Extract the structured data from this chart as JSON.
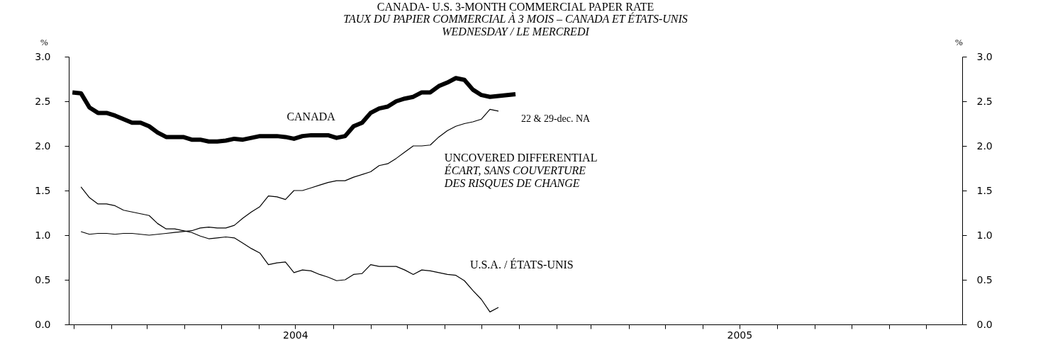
{
  "chart_data": {
    "type": "line",
    "title": "CANADA- U.S. 3-MONTH COMMERCIAL PAPER RATE",
    "subtitle": "TAUX DU PAPIER COMMERCIAL À 3 MOIS – CANADA ET ÉTATS-UNIS\nWEDNESDAY / LE MERCREDI",
    "ylabel": "%",
    "y2label": "%",
    "xlim": [
      "2003-12-28",
      "2005-12-31"
    ],
    "xticks": [
      {
        "value": "2004-01-01",
        "label": null
      },
      {
        "value": "2004-02-01",
        "label": null
      },
      {
        "value": "2004-03-01",
        "label": null
      },
      {
        "value": "2004-04-01",
        "label": null
      },
      {
        "value": "2004-05-01",
        "label": null
      },
      {
        "value": "2004-06-01",
        "label": null
      },
      {
        "value": "2004-07-01",
        "label": "2004"
      },
      {
        "value": "2004-08-01",
        "label": null
      },
      {
        "value": "2004-09-01",
        "label": null
      },
      {
        "value": "2004-10-01",
        "label": null
      },
      {
        "value": "2004-11-01",
        "label": null
      },
      {
        "value": "2004-12-01",
        "label": null
      },
      {
        "value": "2005-01-01",
        "label": null
      },
      {
        "value": "2005-02-01",
        "label": null
      },
      {
        "value": "2005-03-01",
        "label": null
      },
      {
        "value": "2005-04-01",
        "label": null
      },
      {
        "value": "2005-05-01",
        "label": null
      },
      {
        "value": "2005-06-01",
        "label": null
      },
      {
        "value": "2005-07-01",
        "label": "2005"
      },
      {
        "value": "2005-08-01",
        "label": null
      },
      {
        "value": "2005-09-01",
        "label": null
      },
      {
        "value": "2005-10-01",
        "label": null
      },
      {
        "value": "2005-11-01",
        "label": null
      },
      {
        "value": "2005-12-01",
        "label": null
      }
    ],
    "ylim": [
      0,
      3
    ],
    "yticks": [
      {
        "value": 0,
        "label": "0.0"
      },
      {
        "value": 0.5,
        "label": "0.5"
      },
      {
        "value": 1,
        "label": "1.0"
      },
      {
        "value": 1.5,
        "label": "1.5"
      },
      {
        "value": 2,
        "label": "2.0"
      },
      {
        "value": 2.5,
        "label": "2.5"
      },
      {
        "value": 3,
        "label": "3.0"
      }
    ],
    "y2lim": [
      0,
      3
    ],
    "y2ticks": [
      {
        "value": 0,
        "label": "0.0"
      },
      {
        "value": 0.5,
        "label": "0.5"
      },
      {
        "value": 1,
        "label": "1.0"
      },
      {
        "value": 1.5,
        "label": "1.5"
      },
      {
        "value": 2,
        "label": "2.0"
      },
      {
        "value": 2.5,
        "label": "2.5"
      },
      {
        "value": 3,
        "label": "3.0"
      }
    ],
    "series": [
      {
        "name": "CANADA",
        "color": "#000000",
        "x": [
          "2003-12-31",
          "2004-01-07",
          "2004-01-14",
          "2004-01-21",
          "2004-01-28",
          "2004-02-04",
          "2004-02-11",
          "2004-02-18",
          "2004-02-25",
          "2004-03-03",
          "2004-03-10",
          "2004-03-17",
          "2004-03-24",
          "2004-03-31",
          "2004-04-07",
          "2004-04-14",
          "2004-04-21",
          "2004-04-28",
          "2004-05-05",
          "2004-05-12",
          "2004-05-19",
          "2004-05-26",
          "2004-06-02",
          "2004-06-09",
          "2004-06-16",
          "2004-06-23",
          "2004-06-30",
          "2004-07-07",
          "2004-07-14",
          "2004-07-21",
          "2004-07-28",
          "2004-08-04",
          "2004-08-11",
          "2004-08-18",
          "2004-08-25",
          "2004-09-01",
          "2004-09-08",
          "2004-09-15",
          "2004-09-22",
          "2004-09-29",
          "2004-10-06",
          "2004-10-13",
          "2004-10-20",
          "2004-10-27",
          "2004-11-03",
          "2004-11-10",
          "2004-11-17",
          "2004-11-24",
          "2004-12-01",
          "2004-12-08",
          "2004-12-15",
          "2004-12-22",
          "2004-12-29"
        ],
        "values": [
          2.6,
          2.59,
          2.43,
          2.37,
          2.37,
          2.34,
          2.3,
          2.26,
          2.26,
          2.22,
          2.15,
          2.1,
          2.1,
          2.1,
          2.07,
          2.07,
          2.05,
          2.05,
          2.06,
          2.08,
          2.07,
          2.09,
          2.11,
          2.11,
          2.11,
          2.1,
          2.08,
          2.11,
          2.12,
          2.12,
          2.12,
          2.09,
          2.11,
          2.22,
          2.26,
          2.37,
          2.42,
          2.44,
          2.5,
          2.53,
          2.55,
          2.6,
          2.6,
          2.67,
          2.71,
          2.76,
          2.74,
          2.63,
          2.57,
          2.55,
          2.56,
          2.57,
          2.58
        ]
      },
      {
        "name": "UNCOVERED DIFFERENTIAL\nÉCART, SANS COUVERTURE\nDES RISQUES DE CHANGE",
        "color": "#000000",
        "x": [
          "2004-01-07",
          "2004-01-14",
          "2004-01-21",
          "2004-01-28",
          "2004-02-04",
          "2004-02-11",
          "2004-02-18",
          "2004-02-25",
          "2004-03-03",
          "2004-03-10",
          "2004-03-17",
          "2004-03-24",
          "2004-03-31",
          "2004-04-07",
          "2004-04-14",
          "2004-04-21",
          "2004-04-28",
          "2004-05-05",
          "2004-05-12",
          "2004-05-19",
          "2004-05-26",
          "2004-06-02",
          "2004-06-09",
          "2004-06-16",
          "2004-06-23",
          "2004-06-30",
          "2004-07-07",
          "2004-07-14",
          "2004-07-21",
          "2004-07-28",
          "2004-08-04",
          "2004-08-11",
          "2004-08-18",
          "2004-08-25",
          "2004-09-01",
          "2004-09-08",
          "2004-09-15",
          "2004-09-22",
          "2004-09-29",
          "2004-10-06",
          "2004-10-13",
          "2004-10-20",
          "2004-10-27",
          "2004-11-03",
          "2004-11-10",
          "2004-11-17",
          "2004-11-24",
          "2004-12-01",
          "2004-12-08",
          "2004-12-15"
        ],
        "values": [
          1.04,
          1.01,
          1.02,
          1.02,
          1.01,
          1.02,
          1.02,
          1.01,
          1.0,
          1.01,
          1.02,
          1.03,
          1.04,
          1.05,
          1.08,
          1.09,
          1.08,
          1.08,
          1.11,
          1.19,
          1.26,
          1.32,
          1.44,
          1.43,
          1.4,
          1.5,
          1.5,
          1.53,
          1.56,
          1.59,
          1.61,
          1.61,
          1.65,
          1.68,
          1.71,
          1.78,
          1.8,
          1.86,
          1.93,
          2.0,
          2.0,
          2.01,
          2.1,
          2.17,
          2.22,
          2.25,
          2.27,
          2.3,
          2.41,
          2.39
        ]
      },
      {
        "name": "U.S.A. / ÉTATS-UNIS",
        "color": "#000000",
        "x": [
          "2004-01-07",
          "2004-01-14",
          "2004-01-21",
          "2004-01-28",
          "2004-02-04",
          "2004-02-11",
          "2004-02-18",
          "2004-02-25",
          "2004-03-03",
          "2004-03-10",
          "2004-03-17",
          "2004-03-24",
          "2004-03-31",
          "2004-04-07",
          "2004-04-14",
          "2004-04-21",
          "2004-04-28",
          "2004-05-05",
          "2004-05-12",
          "2004-05-19",
          "2004-05-26",
          "2004-06-02",
          "2004-06-09",
          "2004-06-16",
          "2004-06-23",
          "2004-06-30",
          "2004-07-07",
          "2004-07-14",
          "2004-07-21",
          "2004-07-28",
          "2004-08-04",
          "2004-08-11",
          "2004-08-18",
          "2004-08-25",
          "2004-09-01",
          "2004-09-08",
          "2004-09-15",
          "2004-09-22",
          "2004-09-29",
          "2004-10-06",
          "2004-10-13",
          "2004-10-20",
          "2004-10-27",
          "2004-11-03",
          "2004-11-10",
          "2004-11-17",
          "2004-11-24",
          "2004-12-01",
          "2004-12-08",
          "2004-12-15"
        ],
        "values": [
          1.54,
          1.42,
          1.35,
          1.35,
          1.33,
          1.28,
          1.26,
          1.24,
          1.22,
          1.13,
          1.07,
          1.07,
          1.05,
          1.03,
          0.99,
          0.96,
          0.97,
          0.98,
          0.97,
          0.91,
          0.85,
          0.8,
          0.67,
          0.69,
          0.7,
          0.58,
          0.61,
          0.6,
          0.56,
          0.53,
          0.49,
          0.5,
          0.56,
          0.57,
          0.67,
          0.65,
          0.65,
          0.65,
          0.61,
          0.56,
          0.61,
          0.6,
          0.58,
          0.56,
          0.55,
          0.49,
          0.38,
          0.28,
          0.14,
          0.19
        ]
      }
    ],
    "annotations": [
      "22 & 29-dec. NA"
    ]
  }
}
